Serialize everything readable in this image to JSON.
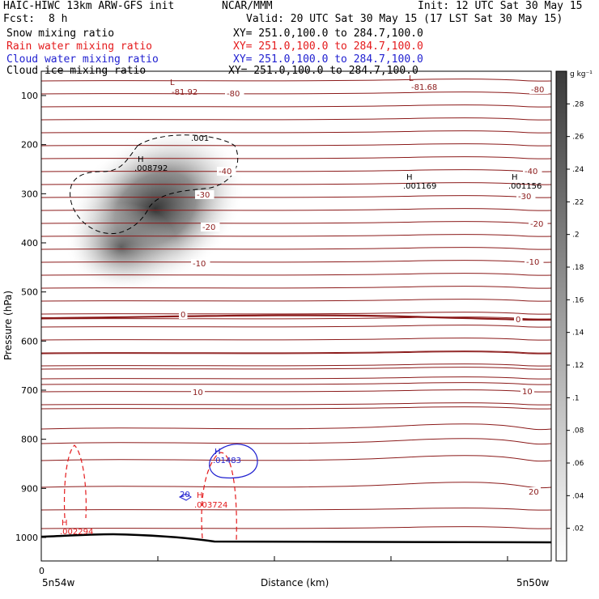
{
  "header": {
    "title": "HAIC-HIWC 13km ARW-GFS init",
    "org": "NCAR/MMM",
    "init": "Init: 12 UTC Sat 30 May 15",
    "fcst_label": "Fcst:",
    "fcst_value": "8 h",
    "valid": "Valid: 20 UTC Sat 30 May 15 (17 LST Sat 30 May 15)",
    "fields": [
      {
        "name": "Snow mixing ratio",
        "xy": "XY= 251.0,100.0 to 284.7,100.0",
        "color": "#000000"
      },
      {
        "name": "Rain water mixing ratio",
        "xy": "XY= 251.0,100.0 to 284.7,100.0",
        "color": "#e41a1c"
      },
      {
        "name": "Cloud water mixing ratio",
        "xy": "XY= 251.0,100.0 to 284.7,100.0",
        "color": "#1f1fd0"
      },
      {
        "name": "Cloud ice mixing ratio",
        "xy": "XY= 251.0,100.0 to 284.7,100.0",
        "color": "#000000"
      }
    ]
  },
  "chart_data": {
    "type": "heatmap",
    "title": "HAIC-HIWC 13km ARW-GFS init",
    "xlabel": "Distance (km)",
    "ylabel": "Pressure (hPa)",
    "x_origin_label": "0",
    "x_left_label": "5n54w",
    "x_right_label": "5n50w",
    "x_range": [
      0,
      1
    ],
    "y_range": [
      1050,
      50
    ],
    "yticks": [
      100,
      200,
      300,
      400,
      500,
      600,
      700,
      800,
      900,
      1000
    ],
    "colorbar": {
      "unit": "g kg⁻¹",
      "ticks": [
        ".02",
        ".04",
        ".06",
        ".08",
        ".1",
        ".12",
        ".14",
        ".16",
        ".18",
        ".2",
        ".22",
        ".24",
        ".26",
        ".28"
      ],
      "range": [
        0,
        0.3
      ]
    },
    "snow_field": {
      "units": "g kg⁻¹",
      "max_label": ".008792"
    },
    "temperature_contours": [
      {
        "label": "-81.92"
      },
      {
        "label": "-81.68"
      },
      {
        "label": "-80"
      },
      {
        "label": "-40"
      },
      {
        "label": "-30"
      },
      {
        "label": "-20"
      },
      {
        "label": "-10"
      },
      {
        "label": "0"
      },
      {
        "label": "10"
      },
      {
        "label": "20"
      }
    ],
    "extrema_labels": [
      {
        "kind": "L",
        "value": "-81.92"
      },
      {
        "kind": "L",
        "value": "-81.68"
      },
      {
        "kind": "H",
        "value": ".008792",
        "field": "snow"
      },
      {
        "kind": "H",
        "value": ".001169"
      },
      {
        "kind": "H",
        "value": ".001156"
      },
      {
        "kind": "H",
        "value": ".01483",
        "field": "cloud water"
      },
      {
        "kind": "H",
        "value": ".003724",
        "field": "rain water"
      },
      {
        "kind": "H",
        "value": ".002294",
        "field": "rain water"
      }
    ],
    "contour_labels": [
      ".001",
      "20"
    ],
    "colors": {
      "temperature": "#8b1a1a",
      "rain": "#e41a1c",
      "cloud_water": "#1f1fd0",
      "snow_contour": "#000000"
    }
  }
}
